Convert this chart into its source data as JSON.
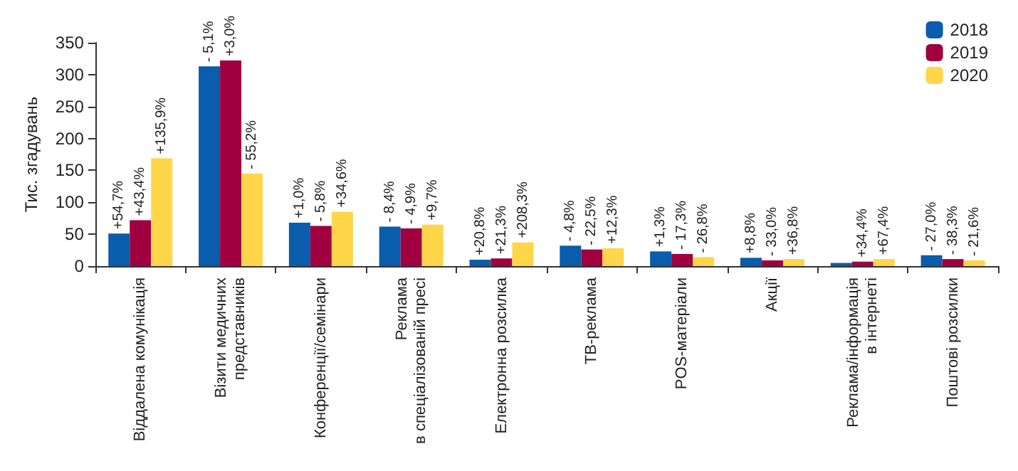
{
  "chart_data": {
    "type": "bar",
    "ylabel": "Тис. згадувань",
    "categories": [
      "Віддалена комунікація",
      "Візити медичних\nпредставників",
      "Конференції/семінари",
      "Реклама\nв спеціалізованій пресі",
      "Електронна розсилка",
      "ТВ-реклама",
      "POS-матеріали",
      "Акції",
      "Реклама/інформація\nв інтернеті",
      "Поштові розсилки"
    ],
    "series": [
      {
        "name": "2018",
        "color": "#0a5cac",
        "values": [
          51,
          313,
          68,
          62,
          10,
          32,
          23,
          13,
          5,
          17
        ]
      },
      {
        "name": "2019",
        "color": "#a0003f",
        "values": [
          72,
          322,
          63,
          59,
          12,
          26,
          19,
          9,
          7,
          11
        ]
      },
      {
        "name": "2020",
        "color": "#ffd54a",
        "values": [
          169,
          145,
          85,
          65,
          37,
          28,
          14,
          11,
          11,
          9
        ]
      }
    ],
    "annotations": [
      "+54,7%",
      "+43,4%",
      "+135,9%",
      "- 5,1%",
      "+3,0%",
      "- 55,2%",
      "+1,0%",
      "- 5,8%",
      "+34,6%",
      "- 8,4%",
      "- 4,9%",
      "+9,7%",
      "+20,8%",
      "+21,3%",
      "+208,3%",
      "- 4,8%",
      "- 22,5%",
      "+12,3%",
      "+1,3%",
      "- 17,3%",
      "- 26,8%",
      "+8,8%",
      "- 33,0%",
      "+36,8%",
      "+34,4%",
      "+67,4%",
      "- 27,0%",
      "- 38,3%",
      "- 21,6%"
    ],
    "ylim": [
      0,
      350
    ],
    "yticks": [
      0,
      50,
      100,
      150,
      200,
      250,
      300,
      350
    ],
    "grid": false,
    "legend": "top right"
  }
}
